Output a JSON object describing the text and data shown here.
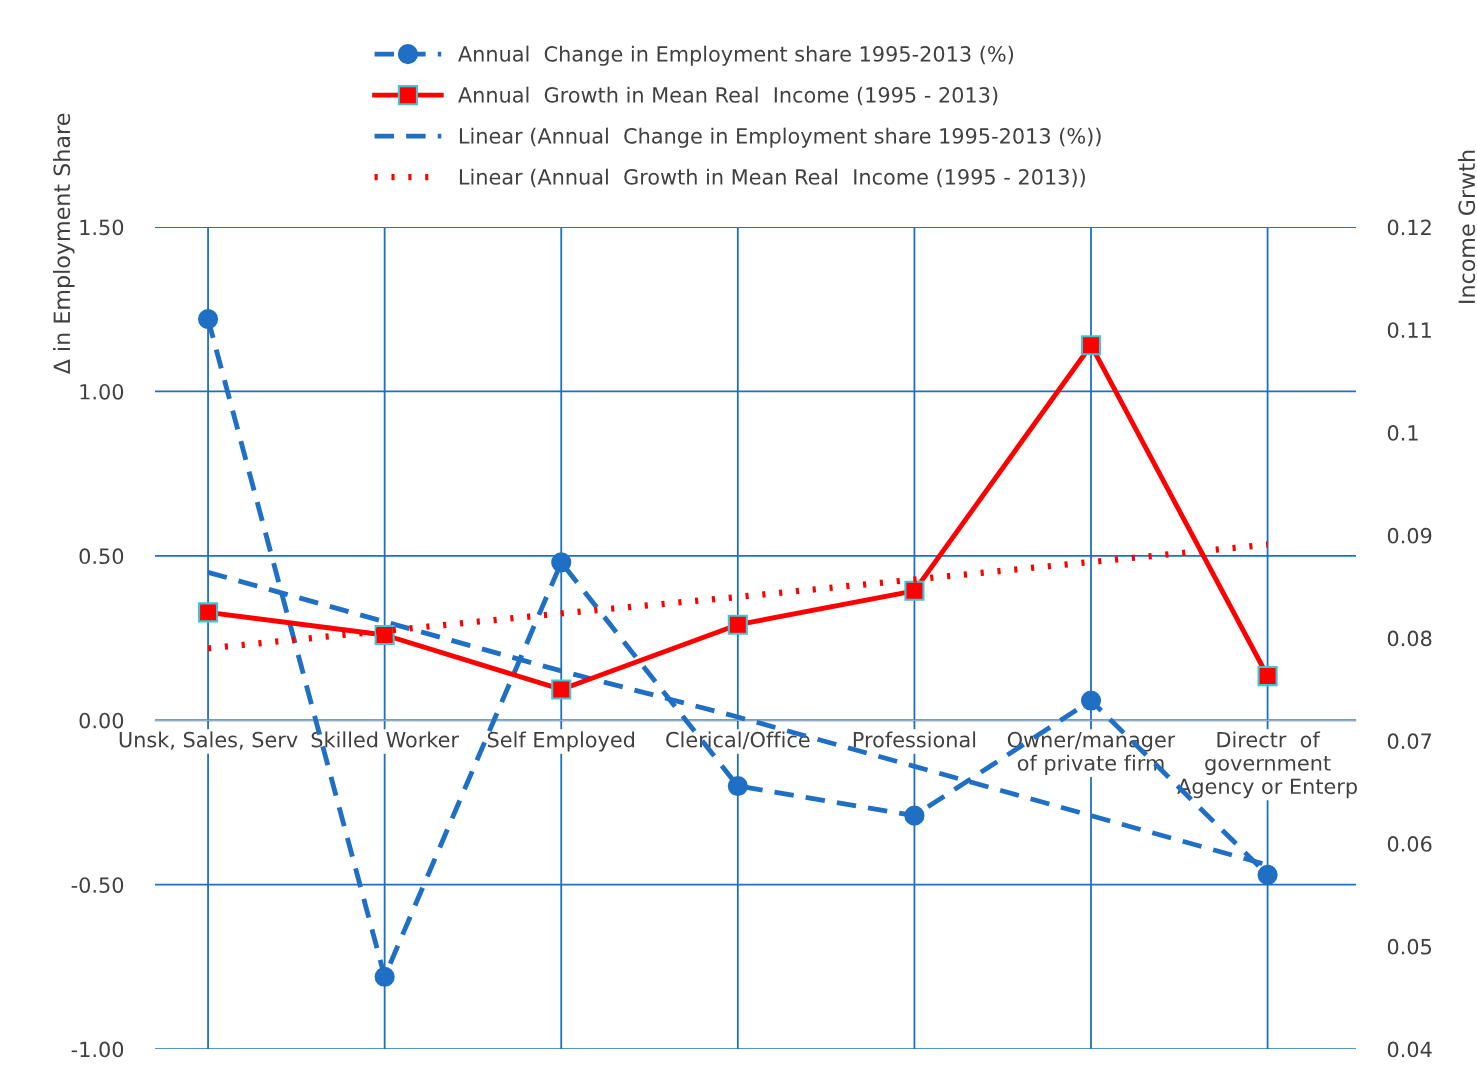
{
  "chart_data": {
    "type": "line",
    "ylabel": "Δ in Employment Share",
    "y2label": "Income Grwth",
    "categories": [
      "Unsk, Sales, Serv",
      "Skilled Worker",
      "Self Employed",
      "Clerical/Office",
      "Professional",
      "Owner/manager\nof private firm",
      "Directr  of\ngovernment\nAgency or Enterp"
    ],
    "series": [
      {
        "name": "Annual  Change in Employment share 1995-2013 (%)",
        "color": "#1f6fc5",
        "marker": "circle",
        "line_style": "dashed",
        "values": [
          1.22,
          -0.78,
          0.48,
          -0.2,
          -0.29,
          0.06,
          -0.47
        ]
      },
      {
        "name": "Annual  Growth in Mean Real  Income (1995 - 2013)",
        "axis": "y2",
        "color": "#ff0000",
        "marker": "square",
        "line_style": "solid",
        "values": [
          0.0825,
          0.0803,
          0.075,
          0.0813,
          0.0846,
          0.1085,
          0.0763
        ]
      },
      {
        "name": "Linear (Annual  Change in Employment share 1995-2013 (%))",
        "color": "#1f6fc5",
        "marker": "none",
        "line_style": "dashed",
        "values": [
          0.45,
          0.3,
          0.15,
          0.01,
          -0.14,
          -0.29,
          -0.44
        ]
      },
      {
        "name": "Linear (Annual  Growth in Mean Real  Income (1995 - 2013))",
        "axis": "y2",
        "color": "#ff0000",
        "marker": "none",
        "line_style": "dotted",
        "values": [
          0.079,
          0.0807,
          0.0824,
          0.084,
          0.0857,
          0.0874,
          0.0891
        ]
      }
    ],
    "ylim": [
      -1.0,
      1.5
    ],
    "yticks": [
      {
        "value": -1.0,
        "label": "-1.00"
      },
      {
        "value": -0.5,
        "label": "-0.50"
      },
      {
        "value": 0,
        "label": "0.00"
      },
      {
        "value": 0.5,
        "label": "0.50"
      },
      {
        "value": 1.0,
        "label": "1.00"
      },
      {
        "value": 1.5,
        "label": "1.50"
      }
    ],
    "y2lim": [
      0.04,
      0.12
    ],
    "y2ticks": [
      0.04,
      0.05,
      0.06,
      0.07,
      0.08,
      0.09,
      0.1,
      0.11,
      0.12
    ],
    "grid": true,
    "legend": "top"
  }
}
